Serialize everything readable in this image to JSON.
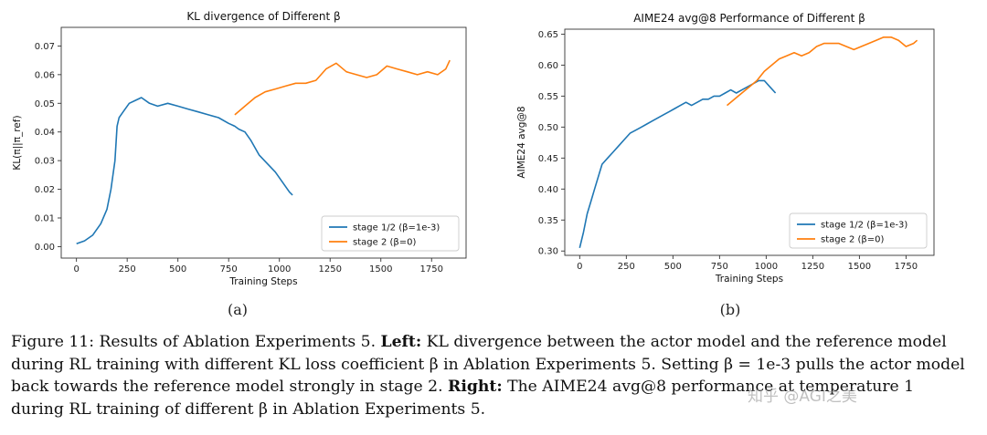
{
  "chart_data": [
    {
      "type": "line",
      "title": "KL divergence of Different β",
      "xlabel": "Training Steps",
      "ylabel": "KL(π||π_ref)",
      "xlim": [
        -75,
        1920
      ],
      "ylim": [
        -0.004,
        0.0765
      ],
      "xticks": [
        0,
        250,
        500,
        750,
        1000,
        1250,
        1500,
        1750
      ],
      "yticks": [
        0.0,
        0.01,
        0.02,
        0.03,
        0.04,
        0.05,
        0.06,
        0.07
      ],
      "grid": false,
      "legend_position": "lower-right",
      "series": [
        {
          "name": "stage 1/2 (β=1e-3)",
          "color": "#1f77b4",
          "x": [
            0,
            40,
            80,
            120,
            150,
            170,
            190,
            200,
            210,
            230,
            260,
            290,
            320,
            360,
            400,
            450,
            500,
            550,
            600,
            650,
            700,
            750,
            780,
            800,
            830,
            860,
            900,
            940,
            980,
            1020,
            1050,
            1065
          ],
          "y": [
            0.001,
            0.002,
            0.004,
            0.008,
            0.013,
            0.02,
            0.03,
            0.042,
            0.045,
            0.047,
            0.05,
            0.051,
            0.052,
            0.05,
            0.049,
            0.05,
            0.049,
            0.048,
            0.047,
            0.046,
            0.045,
            0.043,
            0.042,
            0.041,
            0.04,
            0.037,
            0.032,
            0.029,
            0.026,
            0.022,
            0.019,
            0.018
          ]
        },
        {
          "name": "stage 2 (β=0)",
          "color": "#ff7f0e",
          "x": [
            780,
            830,
            880,
            930,
            980,
            1030,
            1080,
            1130,
            1180,
            1230,
            1280,
            1330,
            1380,
            1430,
            1480,
            1530,
            1580,
            1630,
            1680,
            1730,
            1780,
            1820,
            1840
          ],
          "y": [
            0.046,
            0.049,
            0.052,
            0.054,
            0.055,
            0.056,
            0.057,
            0.057,
            0.058,
            0.062,
            0.064,
            0.061,
            0.06,
            0.059,
            0.06,
            0.063,
            0.062,
            0.061,
            0.06,
            0.061,
            0.06,
            0.062,
            0.065
          ]
        }
      ]
    },
    {
      "type": "line",
      "title": "AIME24 avg@8 Performance of Different β",
      "xlabel": "Training Steps",
      "ylabel": "AIME24 avg@8",
      "xlim": [
        -80,
        1900
      ],
      "ylim": [
        0.293,
        0.658
      ],
      "xticks": [
        0,
        250,
        500,
        750,
        1000,
        1250,
        1500,
        1750
      ],
      "yticks": [
        0.3,
        0.35,
        0.4,
        0.45,
        0.5,
        0.55,
        0.6,
        0.65
      ],
      "grid": false,
      "legend_position": "lower-right",
      "series": [
        {
          "name": "stage 1/2 (β=1e-3)",
          "color": "#1f77b4",
          "x": [
            0,
            20,
            40,
            60,
            80,
            100,
            120,
            150,
            180,
            210,
            240,
            270,
            300,
            330,
            360,
            390,
            420,
            450,
            480,
            510,
            540,
            570,
            600,
            630,
            660,
            690,
            720,
            750,
            780,
            810,
            840,
            870,
            900,
            930,
            960,
            990,
            1020,
            1050
          ],
          "y": [
            0.305,
            0.33,
            0.36,
            0.38,
            0.4,
            0.42,
            0.44,
            0.45,
            0.46,
            0.47,
            0.48,
            0.49,
            0.495,
            0.5,
            0.505,
            0.51,
            0.515,
            0.52,
            0.525,
            0.53,
            0.535,
            0.54,
            0.535,
            0.54,
            0.545,
            0.545,
            0.55,
            0.55,
            0.555,
            0.56,
            0.555,
            0.56,
            0.565,
            0.57,
            0.575,
            0.575,
            0.565,
            0.555
          ]
        },
        {
          "name": "stage 2 (β=0)",
          "color": "#ff7f0e",
          "x": [
            790,
            830,
            870,
            910,
            950,
            990,
            1030,
            1070,
            1110,
            1150,
            1190,
            1230,
            1270,
            1310,
            1350,
            1390,
            1430,
            1470,
            1510,
            1550,
            1590,
            1630,
            1670,
            1710,
            1750,
            1790,
            1810
          ],
          "y": [
            0.535,
            0.545,
            0.555,
            0.565,
            0.575,
            0.59,
            0.6,
            0.61,
            0.615,
            0.62,
            0.615,
            0.62,
            0.63,
            0.635,
            0.635,
            0.635,
            0.63,
            0.625,
            0.63,
            0.635,
            0.64,
            0.645,
            0.645,
            0.64,
            0.63,
            0.635,
            0.64
          ]
        }
      ]
    }
  ],
  "sublabels": {
    "a": "(a)",
    "b": "(b)"
  },
  "caption": {
    "fig": "Figure 11: Results of Ablation Experiments 5.",
    "left_label": "Left:",
    "left_text": "KL divergence between the actor model and the reference model during RL training with different KL loss coefficient β in Ablation Experiments 5. Setting β = 1e-3 pulls the actor model back towards the reference model strongly in stage 2.",
    "right_label": "Right:",
    "right_text": "The AIME24 avg@8 performance at temperature 1 during RL training of different β in Ablation Experiments 5."
  },
  "watermark": "知乎 @AGI之美"
}
